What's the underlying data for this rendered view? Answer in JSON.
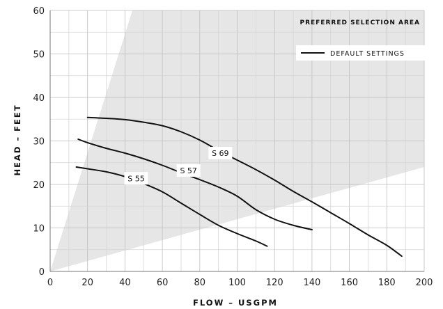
{
  "chart_data": {
    "type": "line",
    "xlabel": "FLOW – USGPM",
    "ylabel": "HEAD – FEET",
    "xlim": [
      0,
      200
    ],
    "ylim": [
      0,
      60
    ],
    "xticks": [
      0,
      20,
      40,
      60,
      80,
      100,
      120,
      140,
      160,
      180,
      200
    ],
    "yticks": [
      0,
      10,
      20,
      30,
      40,
      50,
      60
    ],
    "grid": true,
    "annotation": "PREFERRED SELECTION AREA",
    "preferred_area": {
      "lower_boundary": [
        [
          0,
          0
        ],
        [
          200,
          24
        ]
      ],
      "upper_boundary": [
        [
          0,
          0
        ],
        [
          44,
          60
        ]
      ],
      "fill": "#e6e6e6"
    },
    "legend": {
      "position": "top-right",
      "entries": [
        "DEFAULT SETTINGS"
      ]
    },
    "series": [
      {
        "name": "S 69",
        "label_at": [
          91,
          27.2
        ],
        "color": "#111111",
        "points": [
          [
            20,
            35.4
          ],
          [
            30,
            35.2
          ],
          [
            40,
            34.9
          ],
          [
            50,
            34.3
          ],
          [
            60,
            33.5
          ],
          [
            70,
            32.1
          ],
          [
            80,
            30.2
          ],
          [
            90,
            27.8
          ],
          [
            100,
            25.6
          ],
          [
            110,
            23.4
          ],
          [
            120,
            21
          ],
          [
            130,
            18.4
          ],
          [
            140,
            16
          ],
          [
            150,
            13.5
          ],
          [
            160,
            11
          ],
          [
            170,
            8.4
          ],
          [
            180,
            6
          ],
          [
            188,
            3.5
          ]
        ]
      },
      {
        "name": "S 57",
        "label_at": [
          74,
          23.2
        ],
        "color": "#111111",
        "points": [
          [
            15,
            30.4
          ],
          [
            20,
            29.6
          ],
          [
            30,
            28.3
          ],
          [
            40,
            27.2
          ],
          [
            50,
            25.9
          ],
          [
            60,
            24.4
          ],
          [
            70,
            22.7
          ],
          [
            80,
            21.1
          ],
          [
            90,
            19.4
          ],
          [
            100,
            17.3
          ],
          [
            110,
            14.2
          ],
          [
            120,
            12
          ],
          [
            130,
            10.6
          ],
          [
            140,
            9.6
          ]
        ]
      },
      {
        "name": "S 55",
        "label_at": [
          46,
          21.4
        ],
        "color": "#111111",
        "points": [
          [
            14,
            24
          ],
          [
            20,
            23.6
          ],
          [
            30,
            22.9
          ],
          [
            40,
            21.8
          ],
          [
            50,
            20.2
          ],
          [
            60,
            18.3
          ],
          [
            70,
            15.7
          ],
          [
            80,
            13.1
          ],
          [
            90,
            10.6
          ],
          [
            100,
            8.7
          ],
          [
            110,
            7
          ],
          [
            116,
            5.8
          ]
        ]
      }
    ]
  }
}
